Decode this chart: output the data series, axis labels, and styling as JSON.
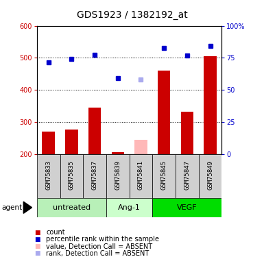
{
  "title": "GDS1923 / 1382192_at",
  "samples": [
    "GSM75833",
    "GSM75835",
    "GSM75837",
    "GSM75839",
    "GSM75841",
    "GSM75845",
    "GSM75847",
    "GSM75849"
  ],
  "groups": [
    {
      "label": "untreated",
      "indices": [
        0,
        1,
        2
      ],
      "color": "#b8f0b8"
    },
    {
      "label": "Ang-1",
      "indices": [
        3,
        4
      ],
      "color": "#ccffcc"
    },
    {
      "label": "VEGF",
      "indices": [
        5,
        6,
        7
      ],
      "color": "#00dd00"
    }
  ],
  "bar_values": [
    270,
    277,
    345,
    207,
    null,
    460,
    333,
    505
  ],
  "bar_absent": [
    null,
    null,
    null,
    null,
    245,
    null,
    null,
    null
  ],
  "dot_values": [
    485,
    496,
    510,
    437,
    null,
    530,
    507,
    537
  ],
  "dot_absent": [
    null,
    null,
    null,
    null,
    432,
    null,
    null,
    null
  ],
  "ylim_left": [
    200,
    600
  ],
  "ylim_right": [
    0,
    100
  ],
  "yticks_left": [
    200,
    300,
    400,
    500,
    600
  ],
  "yticks_right": [
    0,
    25,
    50,
    75,
    100
  ],
  "bar_color": "#cc0000",
  "bar_absent_color": "#ffb8b8",
  "dot_color": "#0000cc",
  "dot_absent_color": "#aaaaee",
  "title_fontsize": 10,
  "tick_fontsize": 7,
  "group_label_fontsize": 8,
  "sample_fontsize": 6.5,
  "legend_fontsize": 7,
  "bg_color": "#ffffff",
  "plot_bg": "#ffffff",
  "left_tick_color": "#cc0000",
  "right_tick_color": "#0000cc",
  "grey_sample_bg": "#d0d0d0"
}
